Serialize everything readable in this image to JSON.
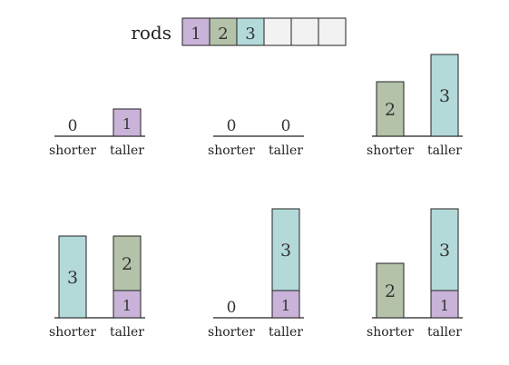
{
  "rods_label": "rods",
  "tray": [
    "1",
    "2",
    "3",
    "",
    "",
    ""
  ],
  "rods": {
    "1": {
      "color": "#c9b3d9",
      "units": 1
    },
    "2": {
      "color": "#b3c2a8",
      "units": 2
    },
    "3": {
      "color": "#b3d9d9",
      "units": 3
    }
  },
  "empty_slot_color": "#f2f2f2",
  "zero_label": "0",
  "panels": [
    {
      "shorter": [],
      "taller": [
        "1"
      ]
    },
    {
      "shorter": [],
      "taller": []
    },
    {
      "shorter": [
        "2"
      ],
      "taller": [
        "3"
      ]
    },
    {
      "shorter": [
        "3"
      ],
      "taller": [
        "1",
        "2"
      ]
    },
    {
      "shorter": [],
      "taller": [
        "1",
        "3"
      ]
    },
    {
      "shorter": [
        "2"
      ],
      "taller": [
        "1",
        "3"
      ]
    }
  ],
  "column_labels": {
    "shorter": "shorter",
    "taller": "taller"
  }
}
